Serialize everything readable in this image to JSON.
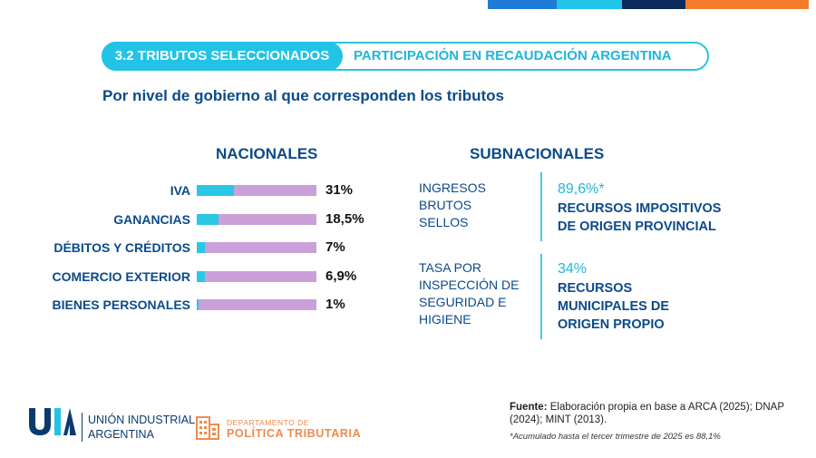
{
  "header": {
    "tag": "3.2 TRIBUTOS SELECCIONADOS",
    "title": "PARTICIPACIÓN EN RECAUDACIÓN ARGENTINA",
    "subtitle": "Por nivel de gobierno al que corresponden los tributos"
  },
  "top_bar_colors": [
    "#1f7bd6",
    "#22c6e8",
    "#0b2a5b",
    "#f47b2c"
  ],
  "chart_data": {
    "type": "bar",
    "title": "NACIONALES",
    "categories": [
      "IVA",
      "GANANCIAS",
      "DÉBITOS Y CRÉDITOS",
      "COMERCIO EXTERIOR",
      "BIENES PERSONALES"
    ],
    "values": [
      31,
      18.5,
      7,
      6.9,
      1
    ],
    "value_labels": [
      "31%",
      "18,5%",
      "7%",
      "6,9%",
      "1%"
    ],
    "ylim": [
      0,
      100
    ],
    "colors": {
      "fill": "#2bc8e6",
      "track": "#c9a1d8"
    }
  },
  "subnacionales": {
    "title": "SUBNACIONALES",
    "blocks": [
      {
        "items": [
          "INGRESOS",
          "BRUTOS",
          "SELLOS"
        ],
        "pct": "89,6%*",
        "desc": [
          "RECURSOS IMPOSITIVOS",
          "DE ORIGEN PROVINCIAL"
        ]
      },
      {
        "items": [
          "TASA POR",
          "INSPECCIÓN DE",
          "SEGURIDAD E",
          "HIGIENE"
        ],
        "pct": "34%",
        "desc": [
          "RECURSOS",
          "MUNICIPALES DE",
          "ORIGEN PROPIO"
        ]
      }
    ]
  },
  "footer": {
    "logo1_mark": "UIA",
    "logo1_lines": [
      "UNIÓN INDUSTRIAL",
      "ARGENTINA"
    ],
    "logo2_small": "DEPARTAMENTO DE",
    "logo2_big": "POLÍTICA TRIBUTARIA",
    "fuente_label": "Fuente:",
    "fuente_text": " Elaboración propia en base a ARCA (2025); DNAP (2024); MINT (2013).",
    "footnote": "*Acumulado hasta el tercer trimestre de 2025 es 88,1%"
  }
}
